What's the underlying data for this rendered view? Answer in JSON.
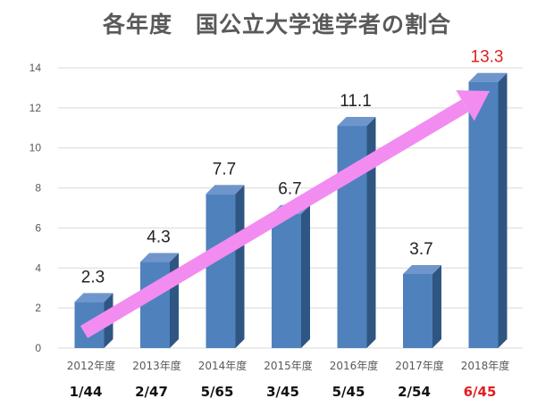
{
  "title": "各年度　国公立大学進学者の割合",
  "chart_data": {
    "type": "bar",
    "categories": [
      "2012年度",
      "2013年度",
      "2014年度",
      "2015年度",
      "2016年度",
      "2017年度",
      "2018年度"
    ],
    "values": [
      2.3,
      4.3,
      7.7,
      6.7,
      11.1,
      3.7,
      13.3
    ],
    "data_labels": [
      "2.3",
      "4.3",
      "7.7",
      "6.7",
      "11.1",
      "3.7",
      "13.3"
    ],
    "ratio_labels": [
      "1/44",
      "2/47",
      "5/65",
      "3/45",
      "5/45",
      "2/54",
      "6/45"
    ],
    "highlight_index": 6,
    "ylim": [
      0,
      14
    ],
    "yticks": [
      0,
      2,
      4,
      6,
      8,
      10,
      12,
      14
    ],
    "grid": true,
    "legend": "none",
    "trend_arrow": true,
    "colors": {
      "bar_front": "#4f81bd",
      "bar_side": "#2f5682",
      "bar_top": "#6f96cc",
      "arrow": "#f28cf0",
      "highlight": "#e02020",
      "grid": "#d9d9d9"
    }
  }
}
